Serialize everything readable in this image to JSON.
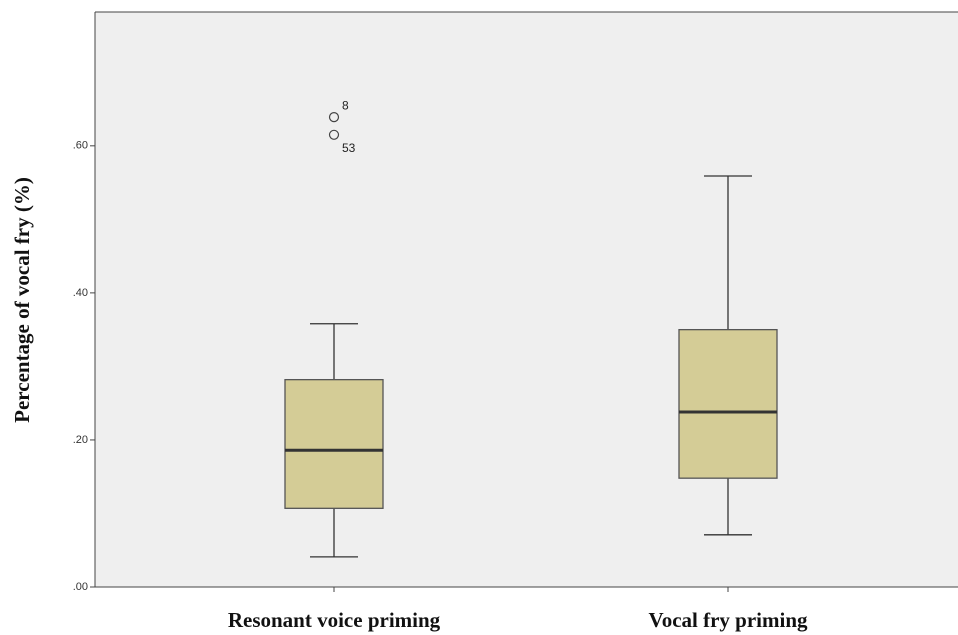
{
  "chart_data": {
    "type": "box",
    "y_label": "Percentage of vocal fry (%)",
    "categories": [
      "Resonant voice priming",
      "Vocal fry priming"
    ],
    "boxes": [
      {
        "whisker_low": 0.041,
        "q1": 0.107,
        "median": 0.186,
        "q3": 0.282,
        "whisker_high": 0.358,
        "outliers": [
          {
            "value": 0.639,
            "label": "8"
          },
          {
            "value": 0.615,
            "label": "53"
          }
        ]
      },
      {
        "whisker_low": 0.071,
        "q1": 0.148,
        "median": 0.238,
        "q3": 0.35,
        "whisker_high": 0.559,
        "outliers": []
      }
    ],
    "color": "#d4cc96",
    "background": "#efefef",
    "ylim": [
      0,
      0.782
    ],
    "yticks": [
      {
        "value": 0,
        "label": ".00"
      },
      {
        "value": 0.2,
        "label": ".20"
      },
      {
        "value": 0.4,
        "label": ".40"
      },
      {
        "value": 0.6,
        "label": ".60"
      }
    ]
  }
}
